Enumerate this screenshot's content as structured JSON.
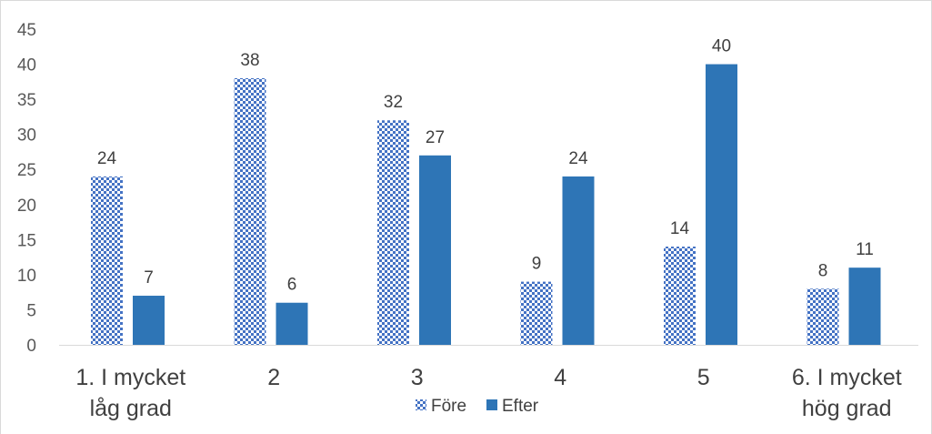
{
  "chart_data": {
    "type": "bar",
    "categories": [
      [
        "1. I mycket",
        "låg grad"
      ],
      [
        "2"
      ],
      [
        "3"
      ],
      [
        "4"
      ],
      [
        "5"
      ],
      [
        "6. I mycket",
        "hög grad"
      ]
    ],
    "series": [
      {
        "name": "Före",
        "values": [
          24,
          38,
          32,
          9,
          14,
          8
        ],
        "color": "#4472c4",
        "pattern": "checkerboard"
      },
      {
        "name": "Efter",
        "values": [
          7,
          6,
          27,
          24,
          40,
          11
        ],
        "color": "#2e75b6",
        "pattern": "solid"
      }
    ],
    "yticks": [
      "0",
      "5",
      "10",
      "15",
      "20",
      "25",
      "30",
      "35",
      "40",
      "45"
    ],
    "ylim": [
      0,
      45
    ],
    "grid": false,
    "legend": "bottom-center",
    "title": "",
    "xlabel": "",
    "ylabel": ""
  }
}
